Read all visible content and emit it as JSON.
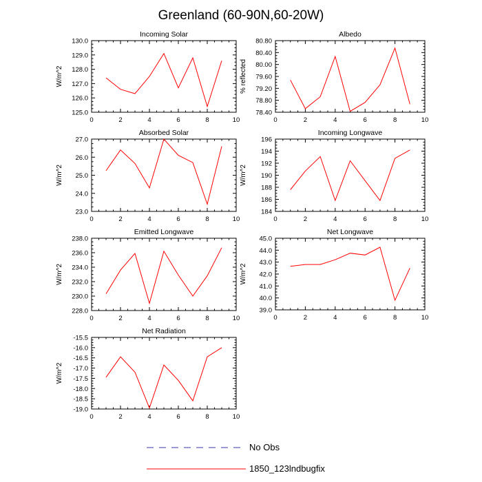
{
  "figure": {
    "title": "Greenland (60-90N,60-20W)"
  },
  "legend": {
    "entries": [
      {
        "name": "No Obs",
        "color": "#3333aa",
        "style": "dashed"
      },
      {
        "name": "1850_123lndbugfix",
        "color": "#ff0000",
        "style": "solid"
      }
    ]
  },
  "chart_data": [
    {
      "type": "line",
      "title": "Incoming Solar",
      "ylabel": "W/m^2",
      "xlim": [
        0,
        10
      ],
      "ylim": [
        125.0,
        130.0
      ],
      "yticks": [
        "125.0",
        "126.0",
        "127.0",
        "128.0",
        "129.0",
        "130.0"
      ],
      "xticks": [
        "0",
        "2",
        "4",
        "6",
        "8",
        "10"
      ],
      "series": [
        {
          "name": "1850_123lndbugfix",
          "color": "#ff0000",
          "x": [
            1,
            2,
            3,
            4,
            5,
            6,
            7,
            8,
            9
          ],
          "y": [
            127.4,
            126.6,
            126.3,
            127.5,
            129.1,
            126.7,
            128.8,
            125.4,
            128.6
          ]
        }
      ]
    },
    {
      "type": "line",
      "title": "Albedo",
      "ylabel": "% reflected",
      "xlim": [
        0,
        10
      ],
      "ylim": [
        78.4,
        80.8
      ],
      "yticks": [
        "78.40",
        "78.80",
        "79.20",
        "79.60",
        "80.00",
        "80.40",
        "80.80"
      ],
      "xticks": [
        "0",
        "2",
        "4",
        "6",
        "8",
        "10"
      ],
      "series": [
        {
          "name": "1850_123lndbugfix",
          "color": "#ff0000",
          "x": [
            1,
            2,
            3,
            4,
            5,
            6,
            7,
            8,
            9
          ],
          "y": [
            79.48,
            78.52,
            78.92,
            80.27,
            78.43,
            78.73,
            79.32,
            80.55,
            78.67
          ]
        }
      ]
    },
    {
      "type": "line",
      "title": "Absorbed Solar",
      "ylabel": "W/m^2",
      "xlim": [
        0,
        10
      ],
      "ylim": [
        23.0,
        27.0
      ],
      "yticks": [
        "23.0",
        "24.0",
        "25.0",
        "26.0",
        "27.0"
      ],
      "xticks": [
        "0",
        "2",
        "4",
        "6",
        "8",
        "10"
      ],
      "series": [
        {
          "name": "1850_123lndbugfix",
          "color": "#ff0000",
          "x": [
            1,
            2,
            3,
            4,
            5,
            6,
            7,
            8,
            9
          ],
          "y": [
            25.25,
            26.4,
            25.65,
            24.3,
            27.0,
            26.1,
            25.7,
            23.4,
            26.6
          ]
        }
      ]
    },
    {
      "type": "line",
      "title": "Incoming Longwave",
      "ylabel": "W/m^2",
      "xlim": [
        0,
        10
      ],
      "ylim": [
        184,
        196
      ],
      "yticks": [
        "184",
        "186",
        "188",
        "190",
        "192",
        "194",
        "196"
      ],
      "xticks": [
        "0",
        "2",
        "4",
        "6",
        "8",
        "10"
      ],
      "series": [
        {
          "name": "1850_123lndbugfix",
          "color": "#ff0000",
          "x": [
            1,
            2,
            3,
            4,
            5,
            6,
            7,
            8,
            9
          ],
          "y": [
            187.6,
            190.7,
            193.1,
            185.8,
            192.4,
            189.1,
            185.8,
            192.8,
            194.2
          ]
        }
      ]
    },
    {
      "type": "line",
      "title": "Emitted Longwave",
      "ylabel": "W/m^2",
      "xlim": [
        0,
        10
      ],
      "ylim": [
        228.0,
        238.0
      ],
      "yticks": [
        "228.0",
        "230.0",
        "232.0",
        "234.0",
        "236.0",
        "238.0"
      ],
      "xticks": [
        "0",
        "2",
        "4",
        "6",
        "8",
        "10"
      ],
      "series": [
        {
          "name": "1850_123lndbugfix",
          "color": "#ff0000",
          "x": [
            1,
            2,
            3,
            4,
            5,
            6,
            7,
            8,
            9
          ],
          "y": [
            230.3,
            233.6,
            235.9,
            229.0,
            236.2,
            232.9,
            230.0,
            232.8,
            236.7
          ]
        }
      ]
    },
    {
      "type": "line",
      "title": "Net Longwave",
      "ylabel": "W/m^2",
      "xlim": [
        0,
        10
      ],
      "ylim": [
        39.0,
        45.0
      ],
      "yticks": [
        "39.0",
        "40.0",
        "41.0",
        "42.0",
        "43.0",
        "44.0",
        "45.0"
      ],
      "xticks": [
        "0",
        "2",
        "4",
        "6",
        "8",
        "10"
      ],
      "series": [
        {
          "name": "1850_123lndbugfix",
          "color": "#ff0000",
          "x": [
            1,
            2,
            3,
            4,
            5,
            6,
            7,
            8,
            9
          ],
          "y": [
            42.65,
            42.8,
            42.8,
            43.2,
            43.75,
            43.6,
            44.25,
            39.8,
            42.5
          ]
        }
      ]
    },
    {
      "type": "line",
      "title": "Net Radiation",
      "ylabel": "W/m^2",
      "xlim": [
        0,
        10
      ],
      "ylim": [
        -19.0,
        -15.5
      ],
      "yticks": [
        "-19.0",
        "-18.5",
        "-18.0",
        "-17.5",
        "-17.0",
        "-16.5",
        "-16.0",
        "-15.5"
      ],
      "xticks": [
        "0",
        "2",
        "4",
        "6",
        "8",
        "10"
      ],
      "series": [
        {
          "name": "1850_123lndbugfix",
          "color": "#ff0000",
          "x": [
            1,
            2,
            3,
            4,
            5,
            6,
            7,
            8,
            9
          ],
          "y": [
            -17.45,
            -16.45,
            -17.2,
            -18.95,
            -16.85,
            -17.6,
            -18.6,
            -16.45,
            -16.0
          ]
        }
      ]
    }
  ]
}
